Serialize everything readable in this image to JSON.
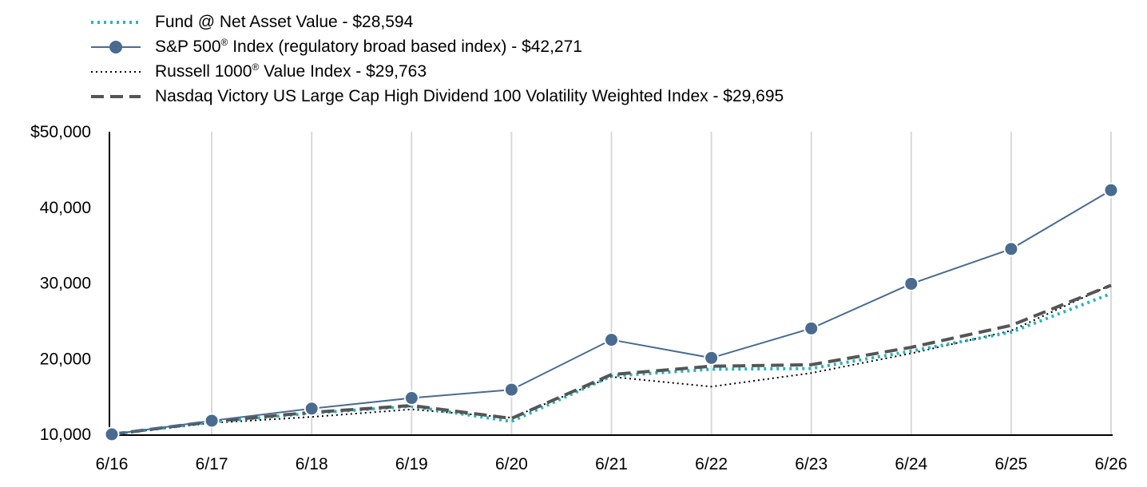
{
  "legend": [
    {
      "name": "Fund @ Net Asset Value - $28,594",
      "main": "Fund @ Net Asset Value - $28,594",
      "sup": "",
      "rest": "",
      "style": "dotted-teal"
    },
    {
      "name": "S&P 500® Index (regulatory broad based index) - $42,271",
      "main": "S&P 500",
      "sup": "®",
      "rest": " Index (regulatory broad based index) - $42,271",
      "style": "solid-marker"
    },
    {
      "name": "Russell 1000® Value Index - $29,763",
      "main": "Russell 1000",
      "sup": "®",
      "rest": " Value Index - $29,763",
      "style": "dotted-black"
    },
    {
      "name": "Nasdaq Victory US Large Cap High Dividend 100 Volatility Weighted Index - $29,695",
      "main": "Nasdaq Victory US Large Cap High Dividend 100 Volatility Weighted Index - $29,695",
      "sup": "",
      "rest": "",
      "style": "dashed-gray"
    }
  ],
  "chart_data": {
    "type": "line",
    "categories": [
      "6/16",
      "6/17",
      "6/18",
      "6/19",
      "6/20",
      "6/21",
      "6/22",
      "6/23",
      "6/24",
      "6/25",
      "6/26"
    ],
    "ylim": [
      10000,
      50000
    ],
    "yticks": [
      10000,
      20000,
      30000,
      40000,
      50000
    ],
    "ytick_labels": [
      "10,000",
      "20,000",
      "30,000",
      "40,000",
      "$50,000"
    ],
    "grid": "vertical",
    "legend_position": "top-left",
    "series": [
      {
        "name": "Fund @ Net Asset Value - $28,594",
        "color": "#2ab5b8",
        "style": "dotted",
        "values": [
          10000,
          11600,
          12800,
          13700,
          11700,
          17700,
          18600,
          18700,
          21000,
          23500,
          28594
        ]
      },
      {
        "name": "S&P 500® Index (regulatory broad based index) - $42,271",
        "color": "#4a6b8f",
        "style": "solid-marker",
        "values": [
          10000,
          11800,
          13400,
          14800,
          15900,
          22500,
          20100,
          24000,
          29900,
          34500,
          42271
        ]
      },
      {
        "name": "Russell 1000® Value Index - $29,763",
        "color": "#000000",
        "style": "dotted",
        "values": [
          10000,
          11500,
          12300,
          13300,
          12200,
          17600,
          16300,
          18100,
          20700,
          23700,
          29763
        ]
      },
      {
        "name": "Nasdaq Victory US Large Cap High Dividend 100 Volatility Weighted Index - $29,695",
        "color": "#555555",
        "style": "dashed",
        "values": [
          10000,
          11700,
          12900,
          13800,
          12100,
          17900,
          19000,
          19200,
          21500,
          24400,
          29695
        ]
      }
    ]
  }
}
